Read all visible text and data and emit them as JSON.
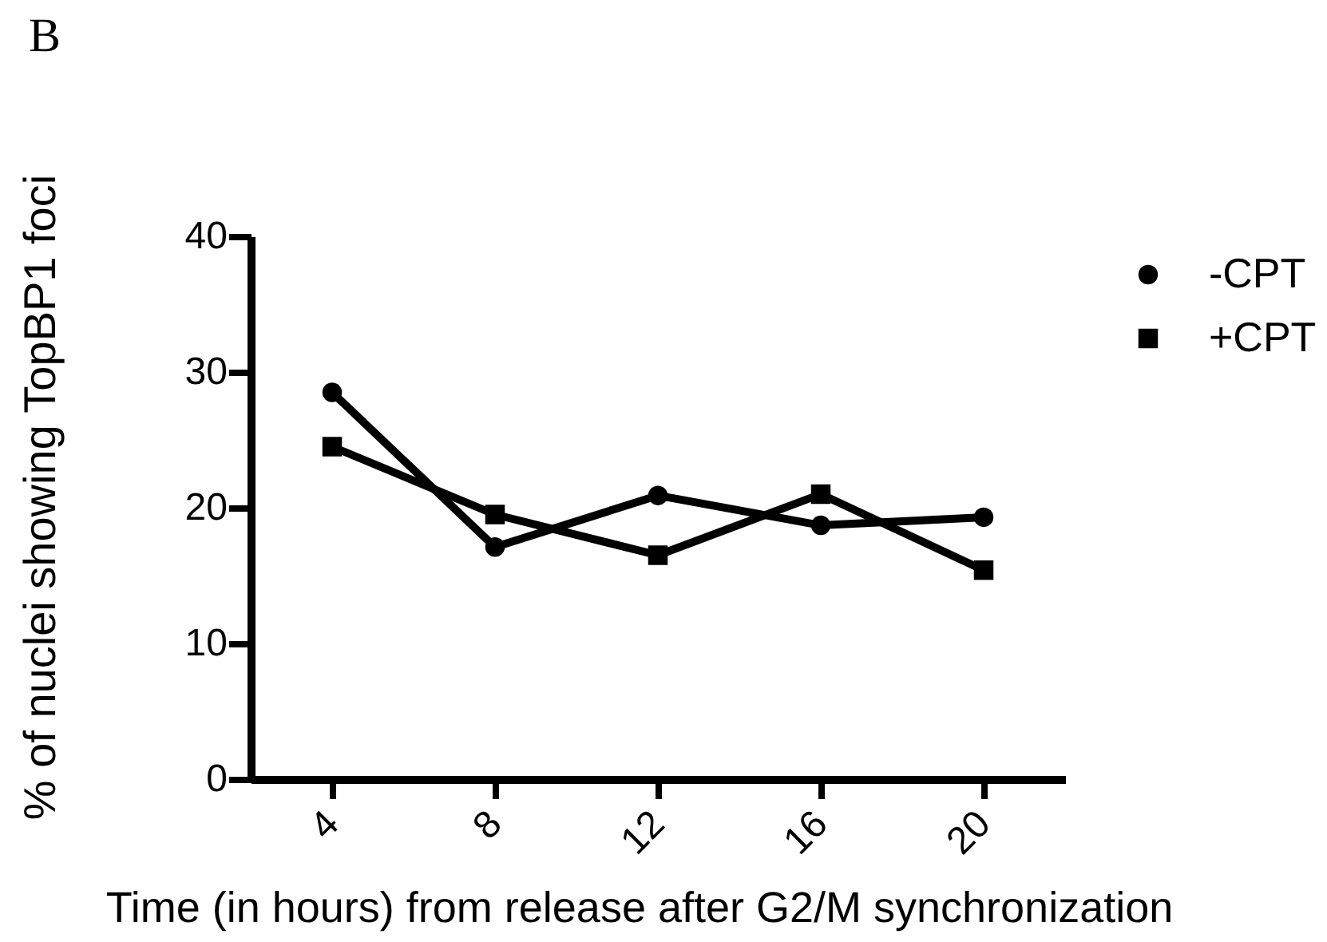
{
  "chart_data": {
    "type": "line",
    "title": "B",
    "xlabel": "Time (in hours) from release after G2/M synchronization",
    "ylabel": "% of nuclei showing TopBP1 foci",
    "categories": [
      "4",
      "8",
      "12",
      "16",
      "20"
    ],
    "series": [
      {
        "name": "-CPT",
        "color": "#000000",
        "marker": "circle",
        "values": [
          28.5,
          17.1,
          20.9,
          18.7,
          19.3
        ]
      },
      {
        "name": "+CPT",
        "color": "#000000",
        "marker": "square",
        "values": [
          24.5,
          19.5,
          16.5,
          21.0,
          15.4
        ]
      }
    ],
    "ylim": [
      0,
      40
    ],
    "yticks": [
      0,
      10,
      20,
      30,
      40
    ],
    "legend": "top right",
    "line_style": "solid"
  }
}
